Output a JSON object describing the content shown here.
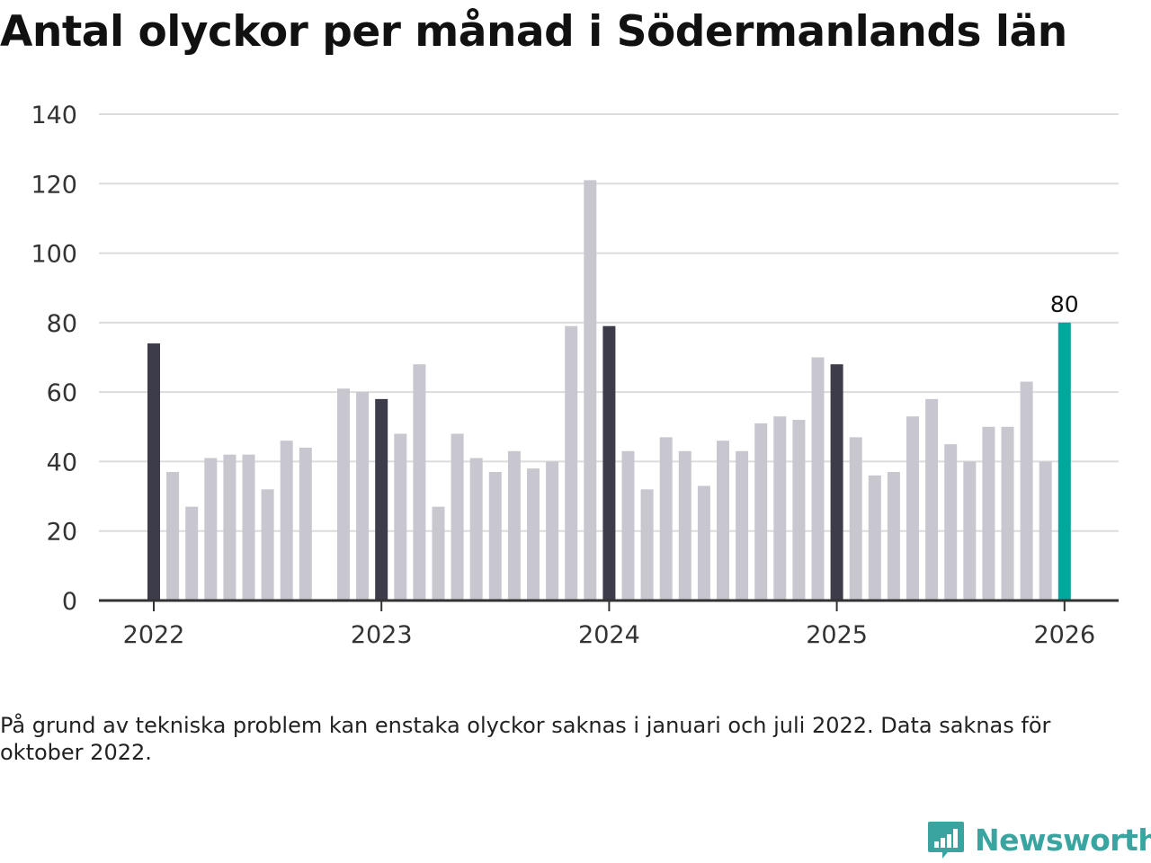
{
  "title": "Antal olyckor per månad i Södermanlands län",
  "note": "På grund av tekniska problem kan enstaka olyckor saknas i januari och juli 2022. Data saknas för oktober 2022.",
  "brand": {
    "name": "Newsworthy",
    "logo_icon": "newsworthy-logo-icon"
  },
  "colors": {
    "default_bar": "#c8c7cf",
    "january_bar": "#3d3c4a",
    "latest_bar": "#00a79d",
    "axis": "#333333",
    "grid": "#dcdcdc"
  },
  "chart_data": {
    "type": "bar",
    "title": "Antal olyckor per månad i Södermanlands län",
    "xlabel": "",
    "ylabel": "",
    "ylim": [
      0,
      140
    ],
    "yticks": [
      0,
      20,
      40,
      60,
      80,
      100,
      120,
      140
    ],
    "xticks": [
      "2022",
      "2023",
      "2024",
      "2025",
      "2026"
    ],
    "categories": [
      "2022-01",
      "2022-02",
      "2022-03",
      "2022-04",
      "2022-05",
      "2022-06",
      "2022-07",
      "2022-08",
      "2022-09",
      "2022-10",
      "2022-11",
      "2022-12",
      "2023-01",
      "2023-02",
      "2023-03",
      "2023-04",
      "2023-05",
      "2023-06",
      "2023-07",
      "2023-08",
      "2023-09",
      "2023-10",
      "2023-11",
      "2023-12",
      "2024-01",
      "2024-02",
      "2024-03",
      "2024-04",
      "2024-05",
      "2024-06",
      "2024-07",
      "2024-08",
      "2024-09",
      "2024-10",
      "2024-11",
      "2024-12",
      "2025-01",
      "2025-02",
      "2025-03",
      "2025-04",
      "2025-05",
      "2025-06",
      "2025-07",
      "2025-08",
      "2025-09",
      "2025-10",
      "2025-11",
      "2025-12",
      "2026-01"
    ],
    "values": [
      74,
      37,
      27,
      41,
      42,
      42,
      32,
      46,
      44,
      null,
      61,
      60,
      58,
      48,
      68,
      27,
      48,
      41,
      37,
      43,
      38,
      40,
      79,
      121,
      79,
      43,
      32,
      47,
      43,
      33,
      46,
      43,
      51,
      53,
      52,
      70,
      68,
      47,
      36,
      37,
      53,
      58,
      45,
      40,
      50,
      50,
      63,
      40,
      80
    ],
    "highlight_label": "80",
    "grid": true,
    "legend": "none"
  }
}
